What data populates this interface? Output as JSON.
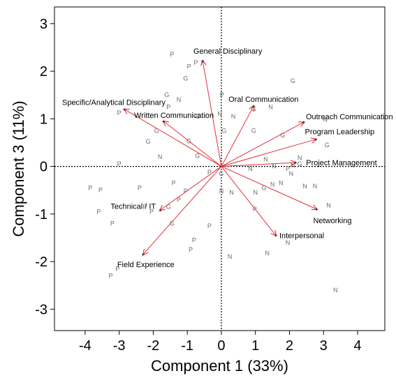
{
  "chart_data": {
    "type": "scatter",
    "subtype": "biplot",
    "xlabel": "Component 1  (33%)",
    "ylabel": "Component 3  (11%)",
    "xlim": [
      -4.9,
      4.8
    ],
    "ylim": [
      -3.45,
      3.35
    ],
    "x_ticks": [
      -4,
      -3,
      -2,
      -1,
      0,
      1,
      2,
      3,
      4
    ],
    "y_ticks": [
      -3,
      -2,
      -1,
      0,
      1,
      2,
      3
    ],
    "reference_lines": {
      "x": 0,
      "y": 0,
      "style": "dotted"
    },
    "arrow_color": "#e0303a",
    "point_label_color": "#6b6b6b",
    "loadings": [
      {
        "label": "General Disciplinary",
        "x": -0.55,
        "y": 2.22
      },
      {
        "label": "Oral Communication",
        "x": 0.95,
        "y": 1.27
      },
      {
        "label": "Outreach Communication",
        "x": 2.42,
        "y": 0.93
      },
      {
        "label": "Program Leadership",
        "x": 2.78,
        "y": 0.57
      },
      {
        "label": "Project Management",
        "x": 2.18,
        "y": 0.08
      },
      {
        "label": "Networking",
        "x": 2.8,
        "y": -0.9
      },
      {
        "label": "Interpersonal",
        "x": 1.6,
        "y": -1.45
      },
      {
        "label": "Field Experience",
        "x": -2.3,
        "y": -1.85
      },
      {
        "label": "Technical / IT",
        "x": -1.8,
        "y": -0.92
      },
      {
        "label": "Written Communication",
        "x": -1.7,
        "y": 0.95
      },
      {
        "label": "Specific/Analytical Disciplinary",
        "x": -2.85,
        "y": 1.2
      }
    ],
    "observations": [
      {
        "label": "P",
        "x": -1.45,
        "y": 2.35
      },
      {
        "label": "P",
        "x": -0.95,
        "y": 2.1
      },
      {
        "label": "P",
        "x": -0.75,
        "y": 2.18
      },
      {
        "label": "G",
        "x": -1.05,
        "y": 1.85
      },
      {
        "label": "G",
        "x": -1.6,
        "y": 1.5
      },
      {
        "label": "N",
        "x": -1.25,
        "y": 1.4
      },
      {
        "label": "P",
        "x": -1.55,
        "y": 1.25
      },
      {
        "label": "G",
        "x": -1.9,
        "y": 0.75
      },
      {
        "label": "G",
        "x": -2.15,
        "y": 0.52
      },
      {
        "label": "G",
        "x": -0.95,
        "y": 0.53
      },
      {
        "label": "G",
        "x": -0.7,
        "y": 1.05
      },
      {
        "label": "G",
        "x": -0.7,
        "y": 0.22
      },
      {
        "label": "N",
        "x": -1.8,
        "y": 0.2
      },
      {
        "label": "P",
        "x": -3.0,
        "y": 1.12
      },
      {
        "label": "P",
        "x": -3.0,
        "y": 0.05
      },
      {
        "label": "P",
        "x": 0.02,
        "y": 1.5
      },
      {
        "label": "N",
        "x": -0.05,
        "y": 1.1
      },
      {
        "label": "G",
        "x": 0.08,
        "y": 0.75
      },
      {
        "label": "N",
        "x": 0.35,
        "y": 1.05
      },
      {
        "label": "G",
        "x": 0.95,
        "y": 1.2
      },
      {
        "label": "N",
        "x": 1.45,
        "y": 1.25
      },
      {
        "label": "G",
        "x": 0.95,
        "y": 0.75
      },
      {
        "label": "G",
        "x": 2.1,
        "y": 1.8
      },
      {
        "label": "G",
        "x": 1.8,
        "y": 0.65
      },
      {
        "label": "N",
        "x": 3.05,
        "y": 0.98
      },
      {
        "label": "G",
        "x": 3.1,
        "y": 0.45
      },
      {
        "label": "N",
        "x": 1.3,
        "y": 0.15
      },
      {
        "label": "N",
        "x": 0.85,
        "y": -0.05
      },
      {
        "label": "N",
        "x": 1.55,
        "y": 0.0
      },
      {
        "label": "P",
        "x": 1.95,
        "y": -0.05
      },
      {
        "label": "N",
        "x": 2.05,
        "y": -0.15
      },
      {
        "label": "N",
        "x": 2.3,
        "y": 0.18
      },
      {
        "label": "G",
        "x": 2.3,
        "y": 0.05
      },
      {
        "label": "N",
        "x": 2.1,
        "y": 0.02
      },
      {
        "label": "N",
        "x": 1.75,
        "y": -0.35
      },
      {
        "label": "G",
        "x": 1.25,
        "y": -0.45
      },
      {
        "label": "N",
        "x": 1.0,
        "y": -0.55
      },
      {
        "label": "N",
        "x": 1.5,
        "y": -0.38
      },
      {
        "label": "N",
        "x": 2.45,
        "y": -0.42
      },
      {
        "label": "N",
        "x": 2.75,
        "y": -0.42
      },
      {
        "label": "N",
        "x": 3.15,
        "y": -0.82
      },
      {
        "label": "N",
        "x": 0.3,
        "y": -0.55
      },
      {
        "label": "N",
        "x": 0.0,
        "y": -0.52
      },
      {
        "label": "G",
        "x": 0.0,
        "y": -0.15
      },
      {
        "label": "P",
        "x": -0.35,
        "y": -0.12
      },
      {
        "label": "P",
        "x": 0.98,
        "y": -0.9
      },
      {
        "label": "N",
        "x": 1.95,
        "y": -1.6
      },
      {
        "label": "N",
        "x": 1.35,
        "y": -1.82
      },
      {
        "label": "N",
        "x": 0.25,
        "y": -1.9
      },
      {
        "label": "N",
        "x": 3.35,
        "y": -2.6
      },
      {
        "label": "P",
        "x": -1.4,
        "y": -0.35
      },
      {
        "label": "P",
        "x": -1.25,
        "y": -0.7
      },
      {
        "label": "P",
        "x": -1.05,
        "y": -0.52
      },
      {
        "label": "G",
        "x": -1.55,
        "y": -0.85
      },
      {
        "label": "P",
        "x": -2.05,
        "y": -0.95
      },
      {
        "label": "P",
        "x": -2.4,
        "y": -0.45
      },
      {
        "label": "P",
        "x": -2.25,
        "y": -0.85
      },
      {
        "label": "G",
        "x": -1.45,
        "y": -1.2
      },
      {
        "label": "P",
        "x": -0.35,
        "y": -1.25
      },
      {
        "label": "P",
        "x": -0.8,
        "y": -1.55
      },
      {
        "label": "P",
        "x": -0.9,
        "y": -1.75
      },
      {
        "label": "P",
        "x": -3.85,
        "y": -0.45
      },
      {
        "label": "P",
        "x": -3.55,
        "y": -0.5
      },
      {
        "label": "P",
        "x": -3.6,
        "y": -0.95
      },
      {
        "label": "P",
        "x": -3.2,
        "y": -1.2
      },
      {
        "label": "P",
        "x": -3.25,
        "y": -2.3
      },
      {
        "label": "P",
        "x": -3.05,
        "y": -2.15
      }
    ]
  }
}
